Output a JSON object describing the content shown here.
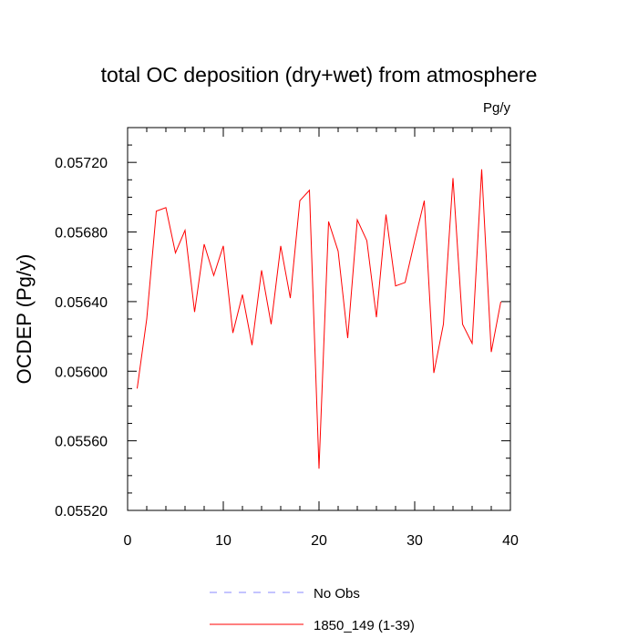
{
  "chart_data": {
    "type": "line",
    "title": "total OC deposition (dry+wet) from atmosphere",
    "units": "Pg/y",
    "ylabel": "OCDEP  (Pg/y)",
    "xlabel": "",
    "xlim": [
      0,
      40
    ],
    "ylim": [
      0.0552,
      0.0574
    ],
    "x_ticks": [
      0,
      10,
      20,
      30,
      40
    ],
    "x_tick_labels": [
      "0",
      "10",
      "20",
      "30",
      "40"
    ],
    "y_ticks": [
      0.0552,
      0.0556,
      0.056,
      0.0564,
      0.0568,
      0.0572
    ],
    "y_tick_labels": [
      "0.05520",
      "0.05560",
      "0.05600",
      "0.05640",
      "0.05680",
      "0.05720"
    ],
    "grid": false,
    "legend_position": "bottom",
    "series": [
      {
        "name": "1850_149 (1-39)",
        "color": "#ff0000",
        "style": "solid",
        "x": [
          1,
          2,
          3,
          4,
          5,
          6,
          7,
          8,
          9,
          10,
          11,
          12,
          13,
          14,
          15,
          16,
          17,
          18,
          19,
          20,
          21,
          22,
          23,
          24,
          25,
          26,
          27,
          28,
          29,
          30,
          31,
          32,
          33,
          34,
          35,
          36,
          37,
          38,
          39
        ],
        "y": [
          0.0559,
          0.0563,
          0.05692,
          0.05694,
          0.05668,
          0.05681,
          0.05634,
          0.05673,
          0.05655,
          0.05672,
          0.05622,
          0.05644,
          0.05615,
          0.05658,
          0.05627,
          0.05672,
          0.05642,
          0.05698,
          0.05704,
          0.05544,
          0.05686,
          0.05669,
          0.05619,
          0.05687,
          0.05675,
          0.05631,
          0.0569,
          0.05649,
          0.05651,
          0.05675,
          0.05698,
          0.05599,
          0.05627,
          0.05711,
          0.05627,
          0.05616,
          0.05716,
          0.05611,
          0.0564
        ]
      }
    ],
    "legend": [
      {
        "label": "No Obs",
        "color": "#8888ff",
        "style": "dashed"
      },
      {
        "label": "1850_149 (1-39)",
        "color": "#ff0000",
        "style": "solid"
      }
    ]
  }
}
